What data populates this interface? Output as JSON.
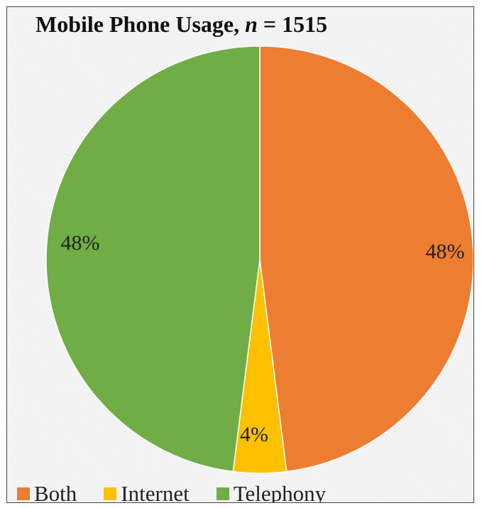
{
  "chart_data": {
    "type": "pie",
    "title_prefix": "Mobile Phone Usage, ",
    "title_italic": "n",
    "title_suffix": " = 1515",
    "slices": [
      {
        "name": "Both",
        "value": 48,
        "label": "48%",
        "color": "#ED7D31"
      },
      {
        "name": "Internet",
        "value": 4,
        "label": "4%",
        "color": "#FFC000"
      },
      {
        "name": "Telephony",
        "value": 48,
        "label": "48%",
        "color": "#70AD47"
      }
    ],
    "legend": [
      "Both",
      "Internet",
      "Telephony"
    ],
    "legend_placement": "bottom",
    "start_angle_deg": 0,
    "direction": "clockwise"
  }
}
